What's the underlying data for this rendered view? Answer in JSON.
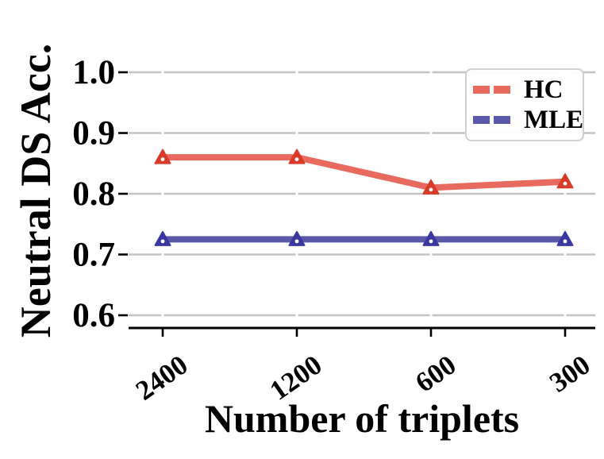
{
  "figure": {
    "background": "#ffffff"
  },
  "chart_data": {
    "type": "line",
    "title": "",
    "xlabel": "Number of triplets",
    "ylabel": "Neutral DS Acc.",
    "categories": [
      "2400",
      "1200",
      "600",
      "300"
    ],
    "series": [
      {
        "name": "HC",
        "values": [
          0.86,
          0.86,
          0.81,
          0.82
        ],
        "line_color": "#e8695e",
        "marker_color": "#d93b2a",
        "marker": "triangle-up"
      },
      {
        "name": "MLE",
        "values": [
          0.725,
          0.725,
          0.725,
          0.725
        ],
        "line_color": "#5a58a8",
        "marker_color": "#3a38a0",
        "marker": "triangle-up"
      }
    ],
    "yticks": {
      "values": [
        1.0,
        0.9,
        0.8,
        0.7,
        0.6
      ],
      "labels": [
        "1.0",
        "0.9",
        "0.8",
        "0.7",
        "0.6"
      ]
    },
    "ylim": [
      0.58,
      1.02
    ],
    "grid": true,
    "grid_color": "#c3c3c3",
    "axis_color": "#000000",
    "legend": {
      "position": "top-right",
      "entries": [
        "HC",
        "MLE"
      ]
    }
  }
}
